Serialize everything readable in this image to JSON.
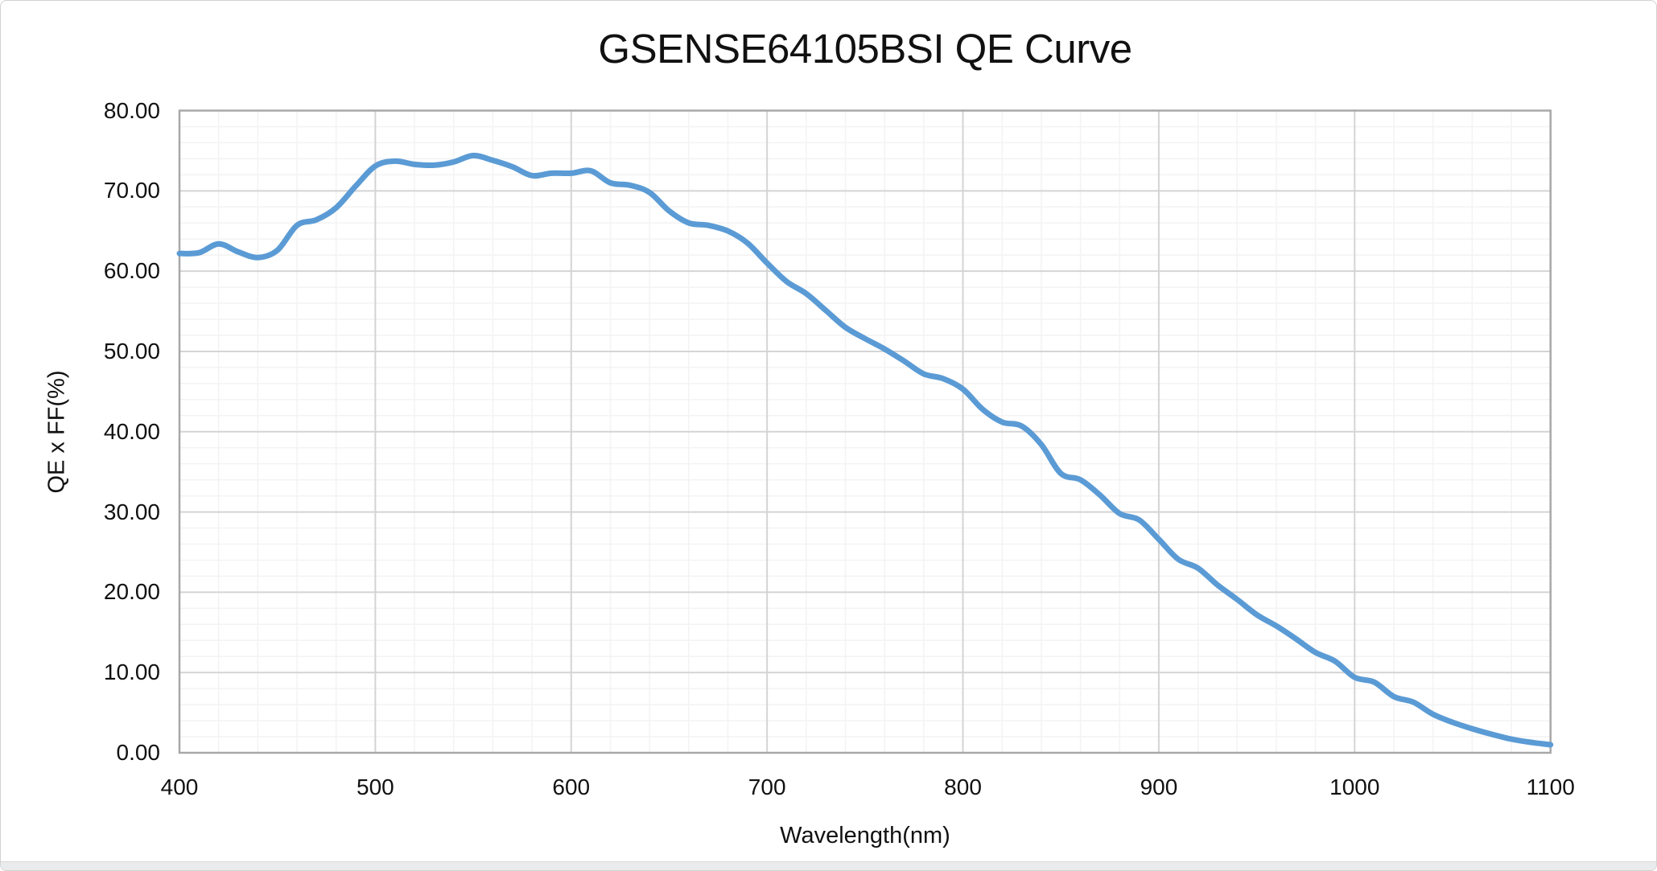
{
  "chart_data": {
    "type": "line",
    "title": "GSENSE64105BSI QE Curve",
    "xlabel": "Wavelength(nm)",
    "ylabel": "QE x FF(%)",
    "xlim": [
      400,
      1100
    ],
    "ylim": [
      0,
      80
    ],
    "x_major_step": 100,
    "x_minor_step": 20,
    "y_major_step": 10,
    "y_minor_step": 2,
    "grid": "major-and-minor",
    "legend": "none",
    "x_tick_labels": [
      "400",
      "500",
      "600",
      "700",
      "800",
      "900",
      "1000",
      "1100"
    ],
    "y_tick_labels": [
      "0.00",
      "10.00",
      "20.00",
      "30.00",
      "40.00",
      "50.00",
      "60.00",
      "70.00",
      "80.00"
    ],
    "series": [
      {
        "name": "QE x FF",
        "x": [
          400,
          410,
          420,
          430,
          440,
          450,
          460,
          470,
          480,
          490,
          500,
          510,
          520,
          530,
          540,
          550,
          560,
          570,
          580,
          590,
          600,
          610,
          620,
          630,
          640,
          650,
          660,
          670,
          680,
          690,
          700,
          710,
          720,
          730,
          740,
          750,
          760,
          770,
          780,
          790,
          800,
          810,
          820,
          830,
          840,
          850,
          860,
          870,
          880,
          890,
          900,
          910,
          920,
          930,
          940,
          950,
          960,
          970,
          980,
          990,
          1000,
          1010,
          1020,
          1030,
          1040,
          1050,
          1060,
          1070,
          1080,
          1090,
          1100
        ],
        "values": [
          62.2,
          62.3,
          63.4,
          62.4,
          61.7,
          62.6,
          65.7,
          66.4,
          67.9,
          70.6,
          73.1,
          73.7,
          73.3,
          73.2,
          73.6,
          74.4,
          73.8,
          73.0,
          71.9,
          72.2,
          72.2,
          72.5,
          71.0,
          70.7,
          69.8,
          67.5,
          66.0,
          65.7,
          65.0,
          63.5,
          61.0,
          58.7,
          57.2,
          55.1,
          53.0,
          51.6,
          50.3,
          48.8,
          47.2,
          46.6,
          45.3,
          42.8,
          41.2,
          40.7,
          38.4,
          34.8,
          34.0,
          32.1,
          29.8,
          29.0,
          26.6,
          24.1,
          23.0,
          20.9,
          19.1,
          17.2,
          15.8,
          14.2,
          12.5,
          11.4,
          9.4,
          8.8,
          7.0,
          6.3,
          4.8,
          3.8,
          3.0,
          2.3,
          1.7,
          1.3,
          1.0
        ]
      }
    ],
    "colors": {
      "line": "#5B9BD5",
      "major_grid": "#D4D4D4",
      "minor_grid": "#F3F3F3",
      "plot_border": "#A8A8A8",
      "text": "#111111",
      "background": "#FFFFFF"
    }
  }
}
